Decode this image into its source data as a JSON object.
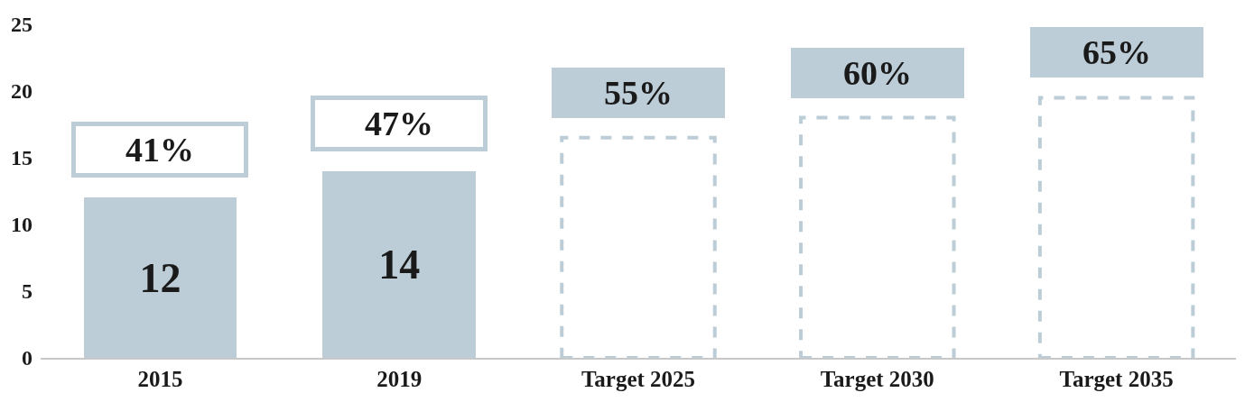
{
  "chart_data": {
    "type": "bar",
    "categories": [
      "2015",
      "2019",
      "Target 2025",
      "Target 2030",
      "Target 2035"
    ],
    "series": [
      {
        "color": "#bccdd8",
        "values": [
          12,
          14,
          null,
          null,
          null
        ],
        "value_labels": [
          "12",
          "14",
          null,
          null,
          null
        ]
      },
      {
        "color": "#bccdd8",
        "line_style": "dashed",
        "values": [
          null,
          null,
          16.5,
          18,
          19.5
        ]
      }
    ],
    "stacked": true,
    "ylim": [
      0,
      25
    ],
    "yticks": [
      0,
      5,
      10,
      15,
      20,
      25
    ],
    "grid": false,
    "annotations": [
      "41%",
      "47%",
      "55%",
      "60%",
      "65%"
    ]
  }
}
